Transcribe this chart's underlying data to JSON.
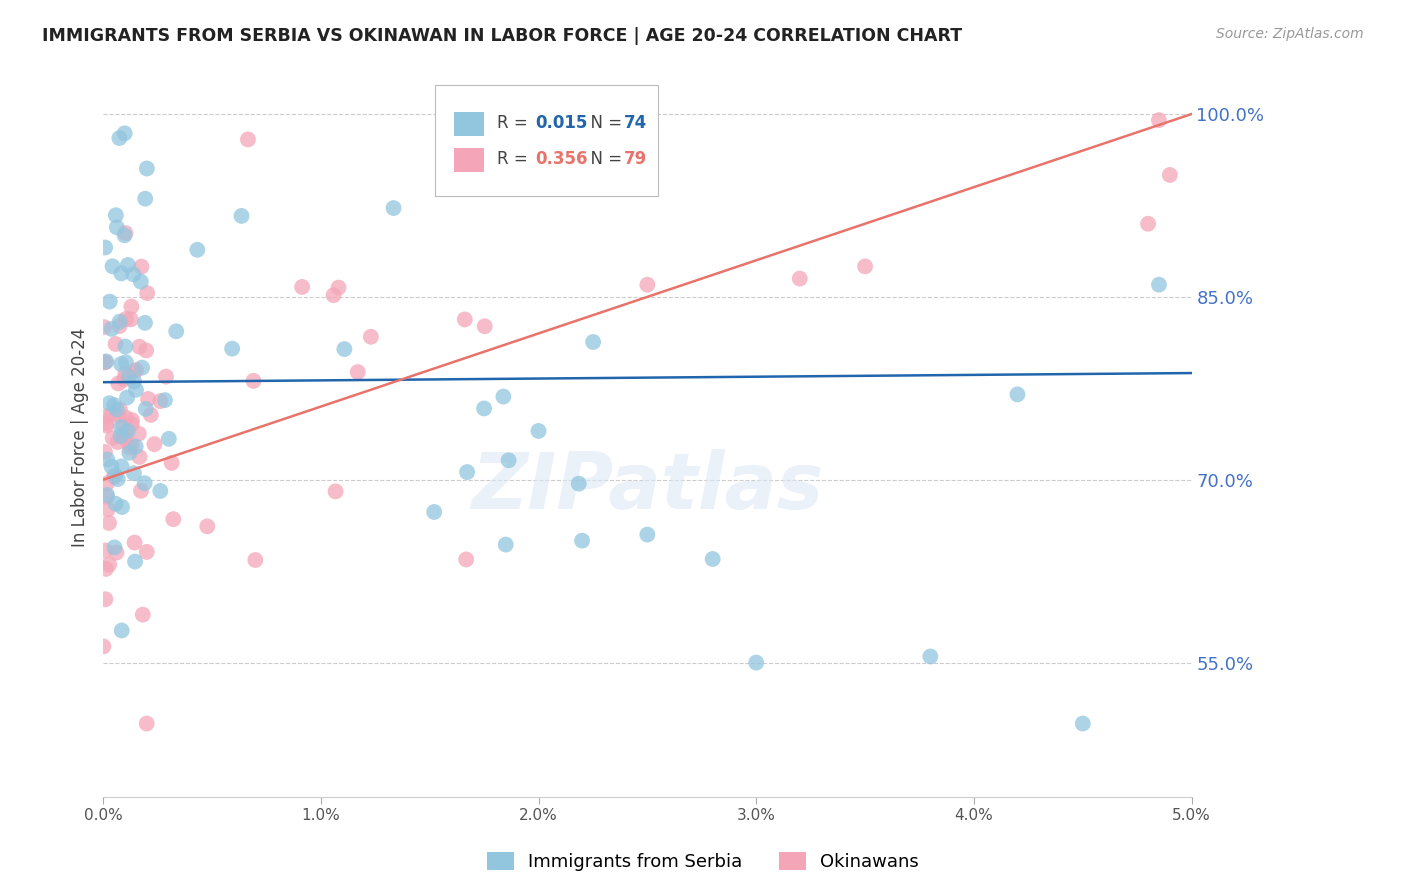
{
  "title": "IMMIGRANTS FROM SERBIA VS OKINAWAN IN LABOR FORCE | AGE 20-24 CORRELATION CHART",
  "source": "Source: ZipAtlas.com",
  "ylabel": "In Labor Force | Age 20-24",
  "y_ticks": [
    55.0,
    70.0,
    85.0,
    100.0
  ],
  "x_ticks": [
    0.0,
    1.0,
    2.0,
    3.0,
    4.0,
    5.0
  ],
  "x_min": 0.0,
  "x_max": 5.0,
  "y_min": 44.0,
  "y_max": 103.0,
  "serbia_R": 0.015,
  "serbia_N": 74,
  "okinawa_R": 0.356,
  "okinawa_N": 79,
  "serbia_color": "#92c5de",
  "okinawa_color": "#f4a6b8",
  "serbia_line_color": "#2166ac",
  "okinawa_line_color": "#e8736a",
  "watermark": "ZIPatlas",
  "background_color": "#ffffff",
  "grid_color": "#cccccc"
}
